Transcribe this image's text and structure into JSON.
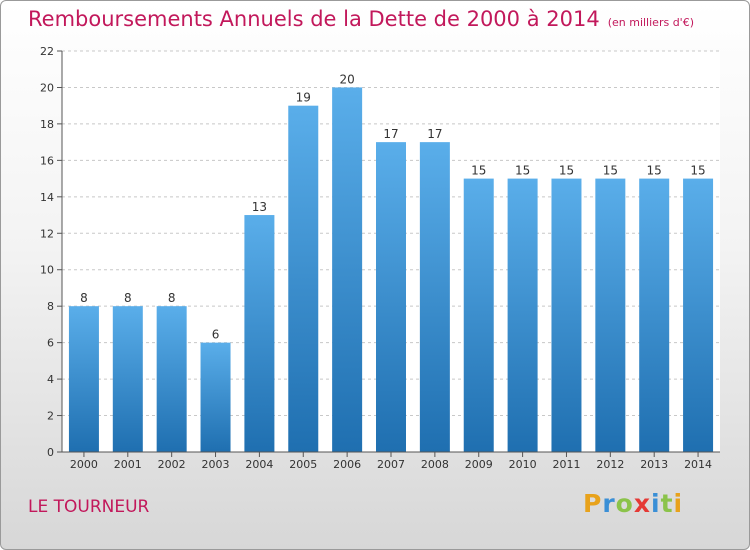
{
  "chart_data": {
    "type": "bar",
    "title": "Remboursements Annuels de la Dette de 2000 à 2014",
    "unit_note": "(en milliers d'€)",
    "categories": [
      "2000",
      "2001",
      "2002",
      "2003",
      "2004",
      "2005",
      "2006",
      "2007",
      "2008",
      "2009",
      "2010",
      "2011",
      "2012",
      "2013",
      "2014"
    ],
    "values": [
      8,
      8,
      8,
      6,
      13,
      19,
      20,
      17,
      17,
      15,
      15,
      15,
      15,
      15,
      15
    ],
    "ylim": [
      0,
      22
    ],
    "yticks": [
      0,
      2,
      4,
      6,
      8,
      10,
      12,
      14,
      16,
      18,
      20,
      22
    ],
    "xlabel": "",
    "ylabel": "",
    "grid": true
  },
  "footer": {
    "location": "LE TOURNEUR",
    "brand": "Proxiti",
    "brand_letters": [
      "P",
      "r",
      "o",
      "x",
      "i",
      "t",
      "i"
    ],
    "brand_colors": [
      "#e8a21b",
      "#3a8fd6",
      "#8bc34a",
      "#e53935",
      "#3a8fd6",
      "#8bc34a",
      "#e8a21b"
    ]
  },
  "colors": {
    "title": "#c2185b",
    "bar_top": "#5aaeea",
    "bar_bottom": "#1f6fb0",
    "grid": "#c8c8c8",
    "axis": "#555555",
    "text": "#333333"
  }
}
